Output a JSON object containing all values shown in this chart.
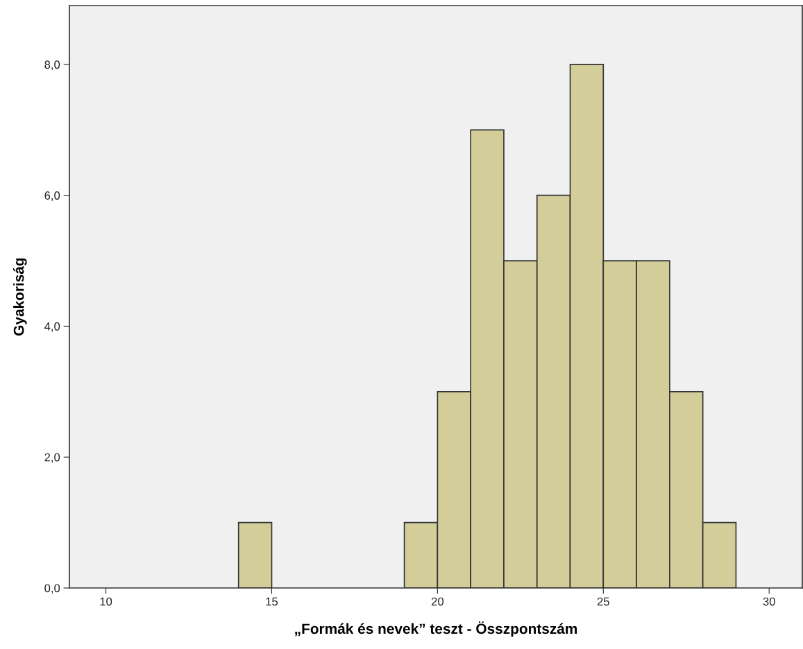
{
  "chart_data": {
    "type": "histogram",
    "xlabel": "„Formák és nevek” teszt - Összpontszám",
    "ylabel": "Gyakoriság",
    "bins": [
      14,
      15,
      16,
      17,
      18,
      19,
      20,
      21,
      22,
      23,
      24,
      25,
      26,
      27,
      28,
      29
    ],
    "values": [
      1,
      0,
      0,
      0,
      0,
      1,
      3,
      7,
      5,
      6,
      8,
      5,
      5,
      3,
      1
    ],
    "color": "#d3ce99",
    "xlim": [
      8.9,
      31.0
    ],
    "ylim": [
      0,
      8.9
    ],
    "xticks": [
      10,
      15,
      20,
      25,
      30
    ],
    "yticks": [
      {
        "value": 0,
        "label": "0,0"
      },
      {
        "value": 2,
        "label": "2,0"
      },
      {
        "value": 4,
        "label": "4,0"
      },
      {
        "value": 6,
        "label": "6,0"
      },
      {
        "value": 8,
        "label": "8,0"
      }
    ],
    "grid": false,
    "legend": false
  }
}
